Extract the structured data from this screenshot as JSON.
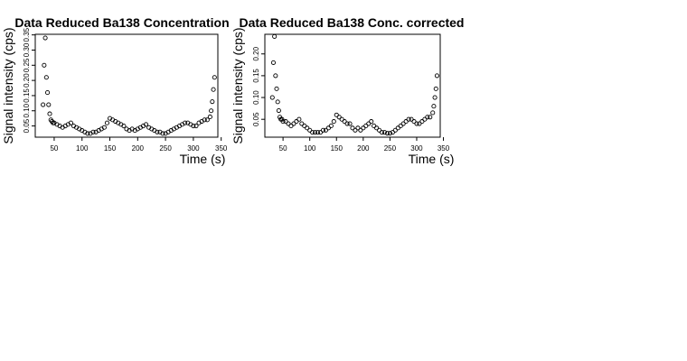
{
  "chart_data": [
    {
      "type": "scatter",
      "title": "Data Reduced Ba138 Concentration",
      "xlabel": "Time (s)",
      "ylabel": "Signal intensity (cps)",
      "xlim": [
        16,
        344
      ],
      "ylim": [
        0.013,
        0.352
      ],
      "x_ticks": [
        "50",
        "100",
        "150",
        "200",
        "250",
        "300",
        "350"
      ],
      "y_ticks": [
        "0.05",
        "0.10",
        "0.15",
        "0.20",
        "0.25",
        "0.30",
        "0.35"
      ],
      "x_tick_values": [
        50,
        100,
        150,
        200,
        250,
        300,
        350
      ],
      "y_tick_values": [
        0.05,
        0.1,
        0.15,
        0.2,
        0.25,
        0.3,
        0.35
      ],
      "x": [
        30,
        32,
        34,
        36,
        38,
        40,
        42,
        44,
        46,
        48,
        50,
        55,
        60,
        65,
        70,
        75,
        80,
        85,
        90,
        95,
        100,
        105,
        110,
        115,
        120,
        125,
        130,
        135,
        140,
        145,
        150,
        155,
        160,
        165,
        170,
        175,
        180,
        185,
        190,
        195,
        200,
        205,
        210,
        215,
        220,
        225,
        230,
        235,
        240,
        245,
        250,
        255,
        260,
        265,
        270,
        275,
        280,
        285,
        290,
        295,
        300,
        305,
        310,
        315,
        320,
        325,
        330,
        332,
        334,
        336,
        338
      ],
      "y": [
        0.12,
        0.25,
        0.34,
        0.21,
        0.16,
        0.12,
        0.09,
        0.07,
        0.065,
        0.06,
        0.06,
        0.055,
        0.05,
        0.045,
        0.05,
        0.055,
        0.06,
        0.05,
        0.045,
        0.04,
        0.035,
        0.03,
        0.025,
        0.025,
        0.03,
        0.03,
        0.035,
        0.04,
        0.045,
        0.06,
        0.075,
        0.07,
        0.065,
        0.06,
        0.055,
        0.05,
        0.04,
        0.035,
        0.04,
        0.035,
        0.04,
        0.045,
        0.05,
        0.055,
        0.045,
        0.04,
        0.035,
        0.03,
        0.03,
        0.025,
        0.025,
        0.03,
        0.035,
        0.04,
        0.045,
        0.05,
        0.055,
        0.06,
        0.06,
        0.055,
        0.05,
        0.05,
        0.06,
        0.065,
        0.07,
        0.07,
        0.08,
        0.1,
        0.13,
        0.17,
        0.21
      ]
    },
    {
      "type": "scatter",
      "title": "Data Reduced Ba138 Conc. corrected",
      "xlabel": "Time (s)",
      "ylabel": "Signal intensity (cps)",
      "xlim": [
        16,
        344
      ],
      "ylim": [
        0.009,
        0.245
      ],
      "x_ticks": [
        "50",
        "100",
        "150",
        "200",
        "250",
        "300",
        "350"
      ],
      "y_ticks": [
        "0.05",
        "0.10",
        "0.15",
        "0.20"
      ],
      "x_tick_values": [
        50,
        100,
        150,
        200,
        250,
        300,
        350
      ],
      "y_tick_values": [
        0.05,
        0.1,
        0.15,
        0.2
      ],
      "x": [
        30,
        32,
        34,
        36,
        38,
        40,
        42,
        44,
        46,
        48,
        50,
        55,
        60,
        65,
        70,
        75,
        80,
        85,
        90,
        95,
        100,
        105,
        110,
        115,
        120,
        125,
        130,
        135,
        140,
        145,
        150,
        155,
        160,
        165,
        170,
        175,
        180,
        185,
        190,
        195,
        200,
        205,
        210,
        215,
        220,
        225,
        230,
        235,
        240,
        245,
        250,
        255,
        260,
        265,
        270,
        275,
        280,
        285,
        290,
        295,
        300,
        305,
        310,
        315,
        320,
        325,
        330,
        332,
        334,
        336,
        338
      ],
      "y": [
        0.1,
        0.18,
        0.24,
        0.15,
        0.12,
        0.09,
        0.07,
        0.055,
        0.05,
        0.05,
        0.045,
        0.045,
        0.04,
        0.035,
        0.04,
        0.045,
        0.05,
        0.04,
        0.035,
        0.03,
        0.025,
        0.02,
        0.02,
        0.02,
        0.02,
        0.025,
        0.025,
        0.03,
        0.035,
        0.045,
        0.06,
        0.055,
        0.05,
        0.045,
        0.04,
        0.04,
        0.03,
        0.025,
        0.03,
        0.025,
        0.03,
        0.035,
        0.04,
        0.045,
        0.035,
        0.03,
        0.025,
        0.02,
        0.02,
        0.018,
        0.018,
        0.02,
        0.025,
        0.03,
        0.035,
        0.04,
        0.045,
        0.05,
        0.05,
        0.045,
        0.04,
        0.04,
        0.045,
        0.05,
        0.055,
        0.055,
        0.065,
        0.08,
        0.1,
        0.12,
        0.15
      ]
    }
  ]
}
